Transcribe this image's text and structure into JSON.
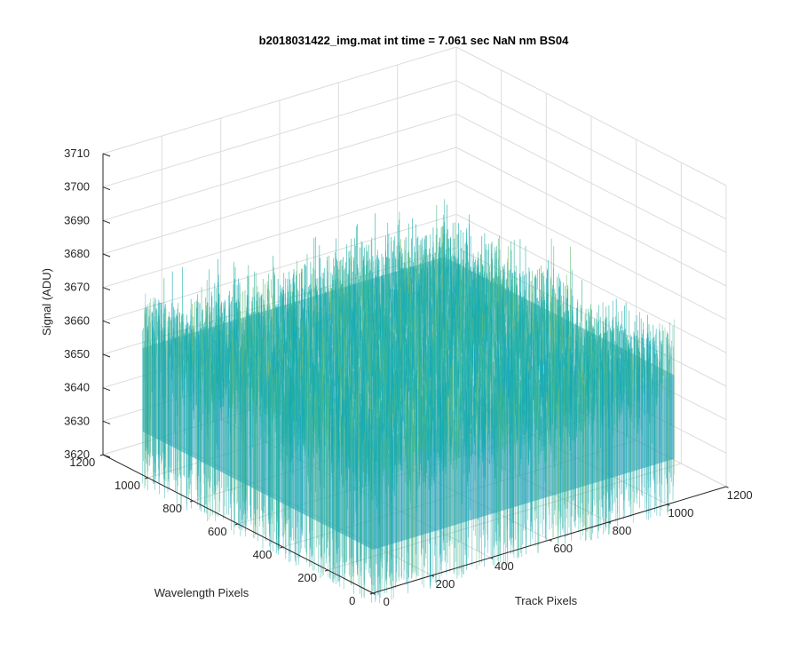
{
  "chart_data": {
    "type": "surface",
    "title": "b2018031422_img.mat int time = 7.061 sec  NaN nm BS04",
    "xlabel": "Track Pixels",
    "ylabel": "Wavelength Pixels",
    "zlabel": "Signal (ADU)",
    "xlim": [
      0,
      1200
    ],
    "ylim": [
      0,
      1200
    ],
    "zlim": [
      3620,
      3710
    ],
    "x_ticks": [
      "0",
      "200",
      "400",
      "600",
      "800",
      "1000",
      "1200"
    ],
    "y_ticks": [
      "0",
      "200",
      "400",
      "600",
      "800",
      "1000",
      "1200"
    ],
    "z_ticks": [
      "3620",
      "3630",
      "3640",
      "3650",
      "3660",
      "3670",
      "3680",
      "3690",
      "3700",
      "3710"
    ],
    "data_extent": {
      "x": [
        0,
        1024
      ],
      "y": [
        0,
        1024
      ]
    },
    "signal_mean": 3658,
    "signal_range": [
      3625,
      3690
    ],
    "grid": true,
    "colormap": "parula",
    "colors": {
      "low": "#1f78c8",
      "mid": "#17b0b0",
      "high": "#c8c040",
      "grid": "#dcdcdc",
      "axis": "#262626"
    }
  }
}
